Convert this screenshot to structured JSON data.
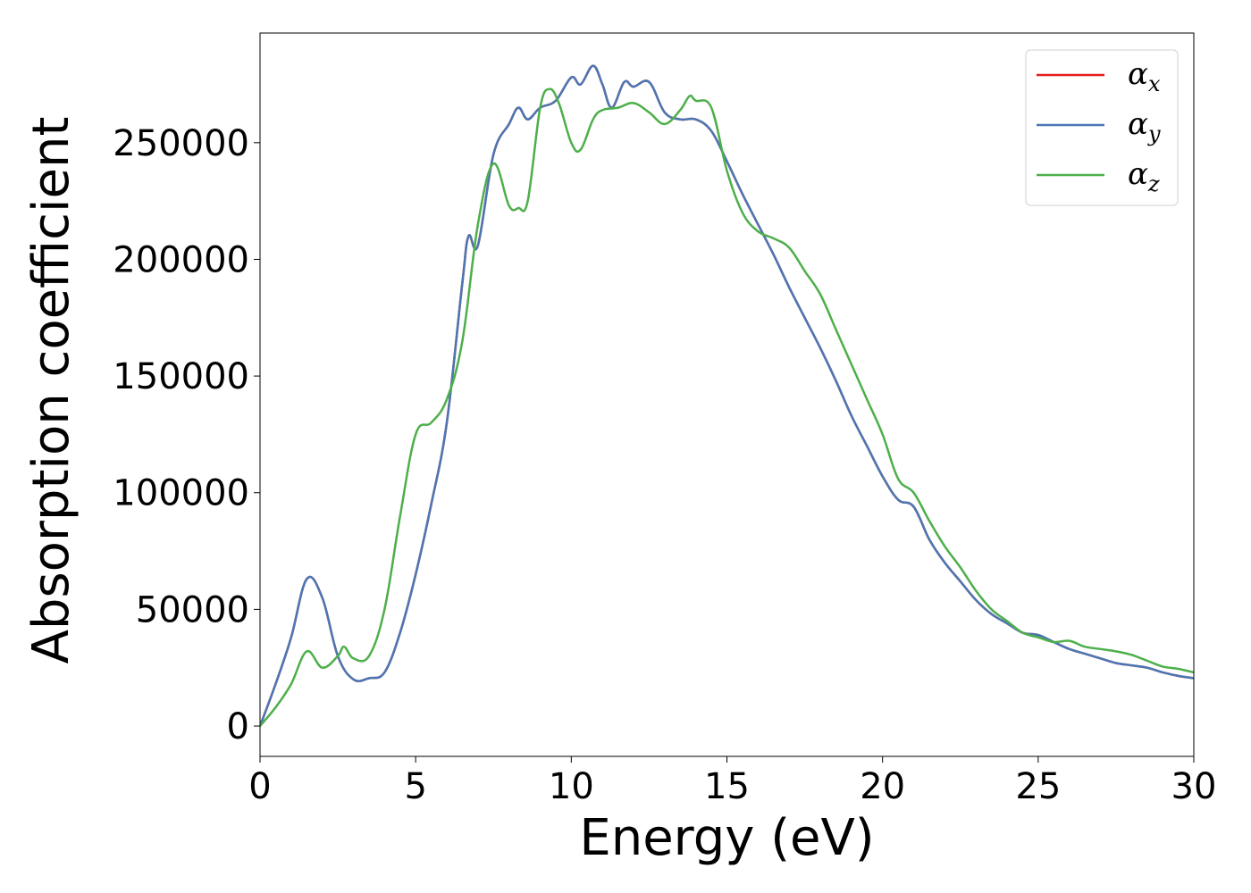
{
  "chart_data": {
    "type": "line",
    "title": "",
    "xlabel": "Energy (eV)",
    "ylabel": "Absorption coefficient",
    "xlim": [
      0,
      30
    ],
    "ylim": [
      -13000,
      297000
    ],
    "xticks": [
      0,
      5,
      10,
      15,
      20,
      25,
      30
    ],
    "xtick_labels": [
      "0",
      "5",
      "10",
      "15",
      "20",
      "25",
      "30"
    ],
    "yticks": [
      0,
      50000,
      100000,
      150000,
      200000,
      250000
    ],
    "ytick_labels": [
      "0",
      "50000",
      "100000",
      "150000",
      "200000",
      "250000"
    ],
    "grid": false,
    "legend_position": "top-right",
    "series": [
      {
        "name": "αx",
        "symbol": "α",
        "subscript": "x",
        "color": "#e41a1c",
        "x": [
          0,
          0.5,
          1,
          1.5,
          2,
          2.5,
          3,
          3.5,
          4,
          4.5,
          5,
          5.5,
          6,
          6.5,
          6.7,
          7,
          7.5,
          8,
          8.3,
          8.6,
          9,
          9.5,
          10,
          10.3,
          10.7,
          11,
          11.3,
          11.7,
          12,
          12.5,
          13,
          13.5,
          14,
          14.5,
          15,
          15.5,
          16,
          16.5,
          17,
          17.5,
          18,
          18.5,
          19,
          19.5,
          20,
          20.5,
          21,
          21.5,
          22,
          22.5,
          23,
          23.5,
          24,
          24.5,
          25,
          25.5,
          26,
          26.5,
          27,
          27.5,
          28,
          28.5,
          29,
          29.5,
          30
        ],
        "y": [
          0,
          18000,
          38000,
          63000,
          55000,
          30000,
          20000,
          20500,
          23000,
          40000,
          65000,
          95000,
          130000,
          190000,
          210000,
          206000,
          245000,
          258000,
          265000,
          260000,
          265000,
          268000,
          278000,
          275000,
          283000,
          275000,
          265000,
          276000,
          274000,
          276000,
          263000,
          260000,
          260000,
          255000,
          242000,
          228000,
          215000,
          202000,
          188000,
          175000,
          162000,
          148000,
          133000,
          120000,
          107000,
          97000,
          94000,
          80000,
          70000,
          62000,
          54000,
          48000,
          44000,
          40000,
          39000,
          36000,
          33000,
          31000,
          29000,
          27000,
          26000,
          25000,
          23000,
          21500,
          20500
        ]
      },
      {
        "name": "αy",
        "symbol": "α",
        "subscript": "y",
        "color": "#4a77b4",
        "x": [
          0,
          0.5,
          1,
          1.5,
          2,
          2.5,
          3,
          3.5,
          4,
          4.5,
          5,
          5.5,
          6,
          6.5,
          6.7,
          7,
          7.5,
          8,
          8.3,
          8.6,
          9,
          9.5,
          10,
          10.3,
          10.7,
          11,
          11.3,
          11.7,
          12,
          12.5,
          13,
          13.5,
          14,
          14.5,
          15,
          15.5,
          16,
          16.5,
          17,
          17.5,
          18,
          18.5,
          19,
          19.5,
          20,
          20.5,
          21,
          21.5,
          22,
          22.5,
          23,
          23.5,
          24,
          24.5,
          25,
          25.5,
          26,
          26.5,
          27,
          27.5,
          28,
          28.5,
          29,
          29.5,
          30
        ],
        "y": [
          0,
          18000,
          38000,
          63000,
          55000,
          30000,
          20000,
          20500,
          23000,
          40000,
          65000,
          95000,
          130000,
          190000,
          210000,
          206000,
          245000,
          258000,
          265000,
          260000,
          265000,
          268000,
          278000,
          275000,
          283000,
          275000,
          265000,
          276000,
          274000,
          276000,
          263000,
          260000,
          260000,
          255000,
          242000,
          228000,
          215000,
          202000,
          188000,
          175000,
          162000,
          148000,
          133000,
          120000,
          107000,
          97000,
          94000,
          80000,
          70000,
          62000,
          54000,
          48000,
          44000,
          40000,
          39000,
          36000,
          33000,
          31000,
          29000,
          27000,
          26000,
          25000,
          23000,
          21500,
          20500
        ]
      },
      {
        "name": "αz",
        "symbol": "α",
        "subscript": "z",
        "color": "#4daf4a",
        "x": [
          0,
          0.5,
          1,
          1.5,
          2,
          2.5,
          2.7,
          3,
          3.5,
          4,
          4.5,
          5,
          5.5,
          6,
          6.5,
          7,
          7.5,
          8,
          8.3,
          8.6,
          9,
          9.3,
          9.6,
          10,
          10.3,
          10.7,
          11,
          11.5,
          12,
          12.5,
          13,
          13.5,
          13.8,
          14,
          14.5,
          15,
          15.5,
          16,
          16.5,
          17,
          17.5,
          18,
          18.5,
          19,
          19.5,
          20,
          20.5,
          21,
          21.5,
          22,
          22.5,
          23,
          23.5,
          24,
          24.5,
          25,
          25.5,
          26,
          26.5,
          27,
          27.5,
          28,
          28.5,
          29,
          29.5,
          30
        ],
        "y": [
          0,
          8000,
          18000,
          32000,
          25000,
          30000,
          34000,
          29000,
          30000,
          50000,
          90000,
          125000,
          130000,
          140000,
          165000,
          215000,
          241000,
          223000,
          222000,
          225000,
          265000,
          273000,
          267000,
          250000,
          247000,
          260000,
          264000,
          265000,
          267000,
          263000,
          258000,
          264000,
          270000,
          268000,
          265000,
          238000,
          220000,
          212000,
          209000,
          205000,
          195000,
          185000,
          170000,
          155000,
          140000,
          125000,
          106000,
          100000,
          88000,
          77000,
          68000,
          58000,
          50000,
          45000,
          40000,
          38000,
          36000,
          36500,
          34000,
          33000,
          32000,
          30500,
          28000,
          25500,
          24500,
          23000
        ]
      }
    ]
  }
}
